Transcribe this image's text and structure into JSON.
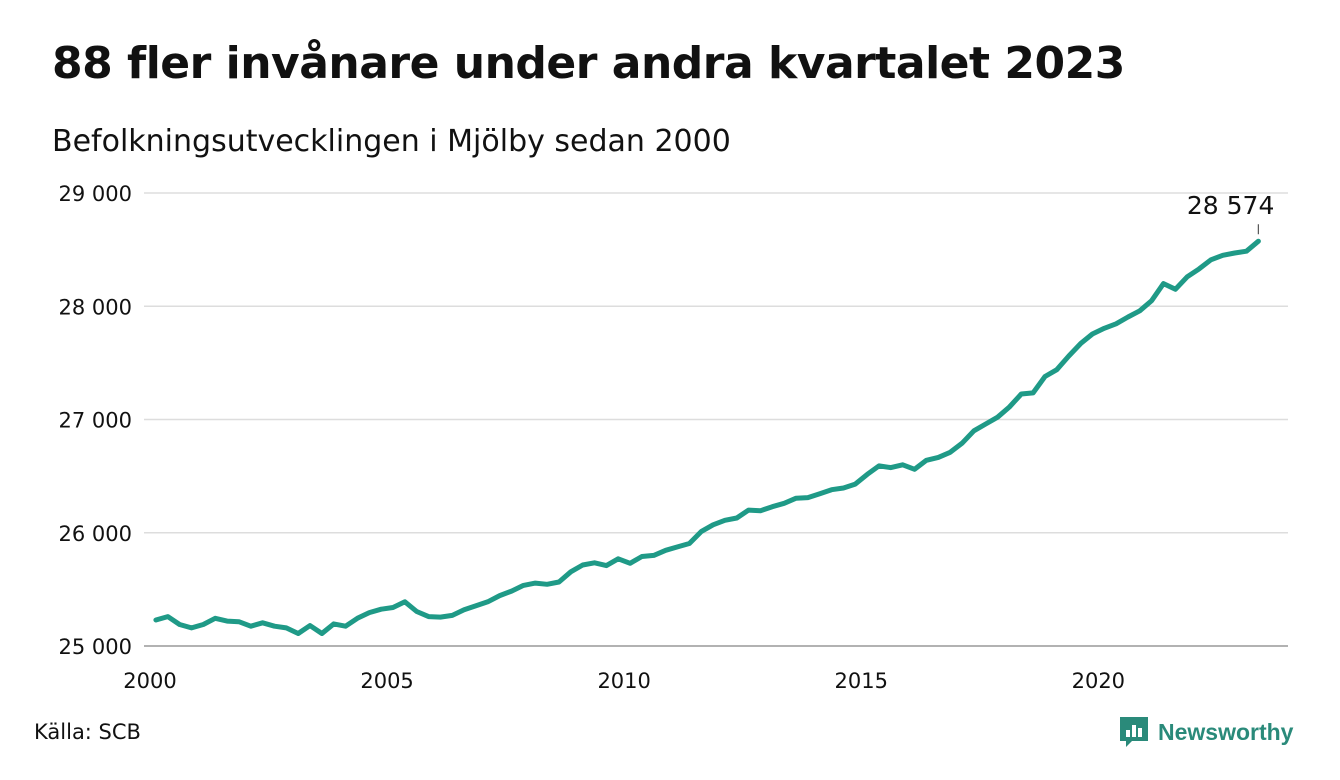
{
  "title": "88 fler invånare under andra kvartalet 2023",
  "subtitle": "Befolkningsutvecklingen i Mjölby sedan 2000",
  "source": "Källa: SCB",
  "brand": {
    "name": "Newsworthy",
    "color": "#2a8a7a"
  },
  "chart_data": {
    "type": "line",
    "line_color": "#1f9a87",
    "grid": true,
    "ylim": [
      25000,
      29000
    ],
    "xlim": [
      2000,
      2024
    ],
    "yticks": [
      {
        "value": 25000,
        "label": "25 000"
      },
      {
        "value": 26000,
        "label": "26 000"
      },
      {
        "value": 27000,
        "label": "27 000"
      },
      {
        "value": 28000,
        "label": "28 000"
      },
      {
        "value": 29000,
        "label": "29 000"
      }
    ],
    "xticks": [
      {
        "value": 2000,
        "label": "2000"
      },
      {
        "value": 2005,
        "label": "2005"
      },
      {
        "value": 2010,
        "label": "2010"
      },
      {
        "value": 2015,
        "label": "2015"
      },
      {
        "value": 2020,
        "label": "2020"
      }
    ],
    "annotation": {
      "label": "28 574"
    },
    "series": [
      {
        "x": [
          "2000 Q1",
          "2000 Q2",
          "2000 Q3",
          "2000 Q4",
          "2001 Q1",
          "2001 Q2",
          "2001 Q3",
          "2001 Q4",
          "2002 Q1",
          "2002 Q2",
          "2002 Q3",
          "2002 Q4",
          "2003 Q1",
          "2003 Q2",
          "2003 Q3",
          "2003 Q4",
          "2004 Q1",
          "2004 Q2",
          "2004 Q3",
          "2004 Q4",
          "2005 Q1",
          "2005 Q2",
          "2005 Q3",
          "2005 Q4",
          "2006 Q1",
          "2006 Q2",
          "2006 Q3",
          "2006 Q4",
          "2007 Q1",
          "2007 Q2",
          "2007 Q3",
          "2007 Q4",
          "2008 Q1",
          "2008 Q2",
          "2008 Q3",
          "2008 Q4",
          "2009 Q1",
          "2009 Q2",
          "2009 Q3",
          "2009 Q4",
          "2010 Q1",
          "2010 Q2",
          "2010 Q3",
          "2010 Q4",
          "2011 Q1",
          "2011 Q2",
          "2011 Q3",
          "2011 Q4",
          "2012 Q1",
          "2012 Q2",
          "2012 Q3",
          "2012 Q4",
          "2013 Q1",
          "2013 Q2",
          "2013 Q3",
          "2013 Q4",
          "2014 Q1",
          "2014 Q2",
          "2014 Q3",
          "2014 Q4",
          "2015 Q1",
          "2015 Q2",
          "2015 Q3",
          "2015 Q4",
          "2016 Q1",
          "2016 Q2",
          "2016 Q3",
          "2016 Q4",
          "2017 Q1",
          "2017 Q2",
          "2017 Q3",
          "2017 Q4",
          "2018 Q1",
          "2018 Q2",
          "2018 Q3",
          "2018 Q4",
          "2019 Q1",
          "2019 Q2",
          "2019 Q3",
          "2019 Q4",
          "2020 Q1",
          "2020 Q2",
          "2020 Q3",
          "2020 Q4",
          "2021 Q1",
          "2021 Q2",
          "2021 Q3",
          "2021 Q4",
          "2022 Q1",
          "2022 Q2",
          "2022 Q3",
          "2022 Q4",
          "2023 Q1",
          "2023 Q2"
        ],
        "values": [
          25230,
          25260,
          25190,
          25160,
          25190,
          25245,
          25220,
          25215,
          25175,
          25205,
          25175,
          25160,
          25110,
          25180,
          25110,
          25195,
          25175,
          25245,
          25295,
          25325,
          25340,
          25390,
          25305,
          25260,
          25255,
          25270,
          25320,
          25355,
          25390,
          25445,
          25485,
          25535,
          25555,
          25545,
          25565,
          25655,
          25715,
          25735,
          25710,
          25770,
          25730,
          25790,
          25800,
          25845,
          25875,
          25905,
          26010,
          26070,
          26110,
          26130,
          26200,
          26195,
          26230,
          26260,
          26305,
          26310,
          26345,
          26380,
          26395,
          26430,
          26515,
          26590,
          26575,
          26600,
          26560,
          26640,
          26665,
          26710,
          26790,
          26900,
          26960,
          27020,
          27110,
          27225,
          27235,
          27380,
          27440,
          27560,
          27670,
          27755,
          27805,
          27845,
          27905,
          27960,
          28050,
          28200,
          28150,
          28260,
          28330,
          28410,
          28450,
          28470,
          28486,
          28574
        ]
      }
    ]
  }
}
